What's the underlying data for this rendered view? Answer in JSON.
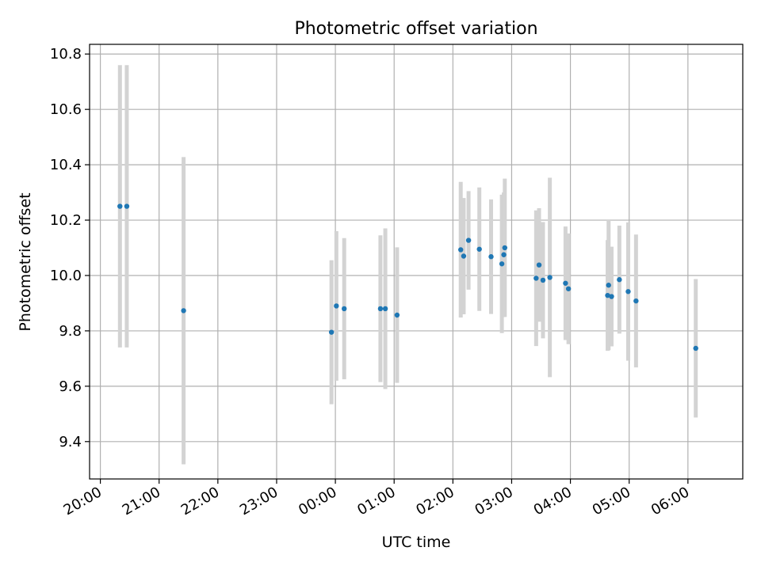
{
  "chart_data": {
    "type": "scatter",
    "title": "Photometric offset variation",
    "xlabel": "UTC time",
    "ylabel": "Photometric offset",
    "x_unit": "UTC time (HH:MM)",
    "xlim": [
      "19:49",
      "06:56"
    ],
    "ylim": [
      9.265,
      10.835
    ],
    "grid": true,
    "x_ticks": [
      "20:00",
      "21:00",
      "22:00",
      "23:00",
      "00:00",
      "01:00",
      "02:00",
      "03:00",
      "04:00",
      "05:00",
      "06:00"
    ],
    "y_ticks": [
      "9.4",
      "9.6",
      "9.8",
      "10.0",
      "10.2",
      "10.4",
      "10.6",
      "10.8"
    ],
    "marker_color": "#1f77b4",
    "errorbar_color": "#d3d3d3",
    "points": [
      {
        "t": "20:20",
        "y": 10.25,
        "err": 0.51
      },
      {
        "t": "20:27",
        "y": 10.25,
        "err": 0.51
      },
      {
        "t": "21:25",
        "y": 9.873,
        "err": 0.555
      },
      {
        "t": "23:56",
        "y": 9.795,
        "err": 0.26
      },
      {
        "t": "00:01",
        "y": 9.89,
        "err": 0.27
      },
      {
        "t": "00:09",
        "y": 9.88,
        "err": 0.255
      },
      {
        "t": "00:46",
        "y": 9.88,
        "err": 0.265
      },
      {
        "t": "00:51",
        "y": 9.88,
        "err": 0.29
      },
      {
        "t": "01:03",
        "y": 9.857,
        "err": 0.245
      },
      {
        "t": "02:08",
        "y": 10.093,
        "err": 0.245
      },
      {
        "t": "02:11",
        "y": 10.07,
        "err": 0.21
      },
      {
        "t": "02:16",
        "y": 10.127,
        "err": 0.178
      },
      {
        "t": "02:27",
        "y": 10.095,
        "err": 0.223
      },
      {
        "t": "02:39",
        "y": 10.068,
        "err": 0.207
      },
      {
        "t": "02:50",
        "y": 10.042,
        "err": 0.25
      },
      {
        "t": "02:52",
        "y": 10.075,
        "err": 0.225
      },
      {
        "t": "02:53",
        "y": 10.1,
        "err": 0.25
      },
      {
        "t": "03:25",
        "y": 9.99,
        "err": 0.245
      },
      {
        "t": "03:28",
        "y": 10.038,
        "err": 0.205
      },
      {
        "t": "03:32",
        "y": 9.983,
        "err": 0.21
      },
      {
        "t": "03:39",
        "y": 9.993,
        "err": 0.36
      },
      {
        "t": "03:55",
        "y": 9.972,
        "err": 0.205
      },
      {
        "t": "03:58",
        "y": 9.952,
        "err": 0.2
      },
      {
        "t": "04:38",
        "y": 9.928,
        "err": 0.2
      },
      {
        "t": "04:39",
        "y": 9.965,
        "err": 0.235
      },
      {
        "t": "04:42",
        "y": 9.924,
        "err": 0.18
      },
      {
        "t": "04:50",
        "y": 9.985,
        "err": 0.195
      },
      {
        "t": "04:59",
        "y": 9.942,
        "err": 0.25
      },
      {
        "t": "05:07",
        "y": 9.908,
        "err": 0.24
      },
      {
        "t": "06:08",
        "y": 9.737,
        "err": 0.25
      }
    ]
  }
}
